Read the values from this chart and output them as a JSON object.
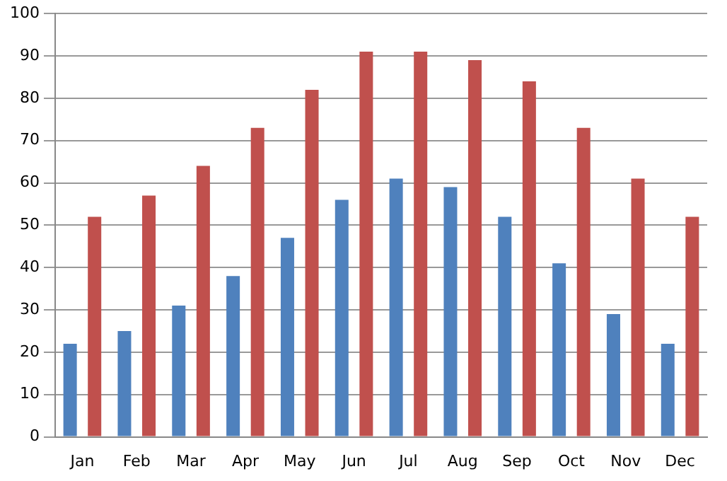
{
  "chart_data": {
    "type": "bar",
    "categories": [
      "Jan",
      "Feb",
      "Mar",
      "Apr",
      "May",
      "Jun",
      "Jul",
      "Aug",
      "Sep",
      "Oct",
      "Nov",
      "Dec"
    ],
    "series": [
      {
        "color": "#4f81bd",
        "values": [
          22,
          25,
          31,
          38,
          47,
          56,
          61,
          59,
          52,
          41,
          29,
          22
        ]
      },
      {
        "color": "#c0504d",
        "values": [
          52,
          57,
          64,
          73,
          82,
          91,
          91,
          89,
          84,
          73,
          61,
          52
        ]
      }
    ],
    "ylim": [
      0,
      100
    ],
    "yticks": [
      0,
      10,
      20,
      30,
      40,
      50,
      60,
      70,
      80,
      90,
      100
    ],
    "grid": "y",
    "legend": false
  }
}
